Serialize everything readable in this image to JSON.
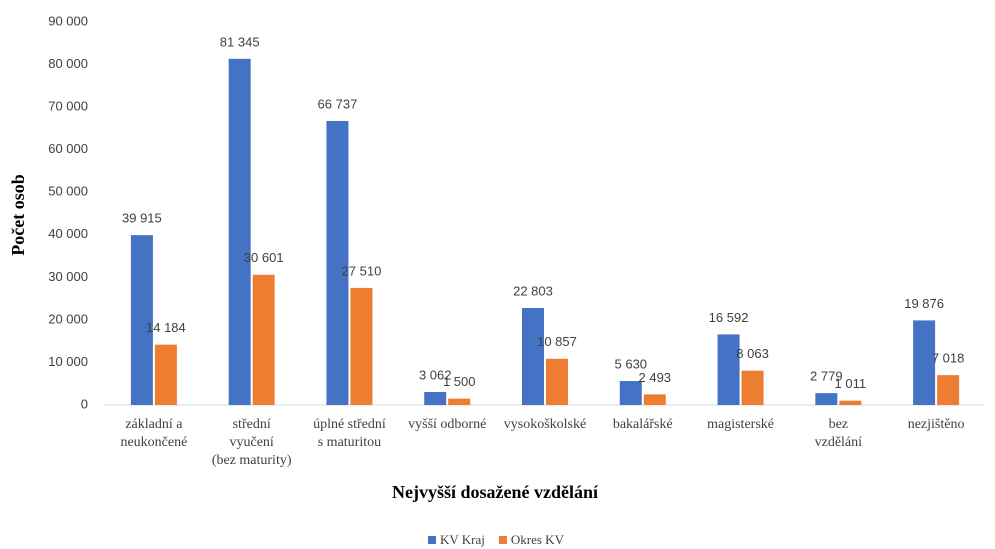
{
  "chart_data": {
    "type": "bar",
    "x_label": "Nejvyšší dosažené vzdělání",
    "y_label": "Počet osob",
    "categories": [
      [
        "základní a",
        "neukončené"
      ],
      [
        "střední",
        "vyučení",
        "(bez maturity)"
      ],
      [
        "úplné střední",
        "s maturitou"
      ],
      [
        "vyšší odborné"
      ],
      [
        "vysokoškolské"
      ],
      [
        "bakalářské"
      ],
      [
        "magisterské"
      ],
      [
        "bez",
        "vzdělání"
      ],
      [
        "nezjištěno"
      ]
    ],
    "series": [
      {
        "name": "KV Kraj",
        "color": "#4472c4",
        "values": [
          39915,
          81345,
          66737,
          3062,
          22803,
          5630,
          16592,
          2779,
          19876
        ],
        "value_labels": [
          "39 915",
          "81 345",
          "66 737",
          "3 062",
          "22 803",
          "5 630",
          "16 592",
          "2 779",
          "19 876"
        ]
      },
      {
        "name": "Okres KV",
        "color": "#ed7d31",
        "values": [
          14184,
          30601,
          27510,
          1500,
          10857,
          2493,
          8063,
          1011,
          7018
        ],
        "value_labels": [
          "14 184",
          "30 601",
          "27 510",
          "1 500",
          "10 857",
          "2 493",
          "8 063",
          "1 011",
          "7 018"
        ]
      }
    ],
    "ylim": [
      0,
      90000
    ],
    "yticks": [
      0,
      {
        "value": 10000,
        "label": "10 000"
      },
      {
        "value": 20000,
        "label": "20 000"
      },
      {
        "value": 30000,
        "label": "30 000"
      },
      {
        "value": 40000,
        "label": "40 000"
      },
      {
        "value": 50000,
        "label": "50 000"
      },
      {
        "value": 60000,
        "label": "60 000"
      },
      {
        "value": 70000,
        "label": "70 000"
      },
      {
        "value": 80000,
        "label": "80 000"
      },
      {
        "value": 90000,
        "label": "90 000"
      }
    ],
    "grid": false,
    "legend": "bottom"
  }
}
